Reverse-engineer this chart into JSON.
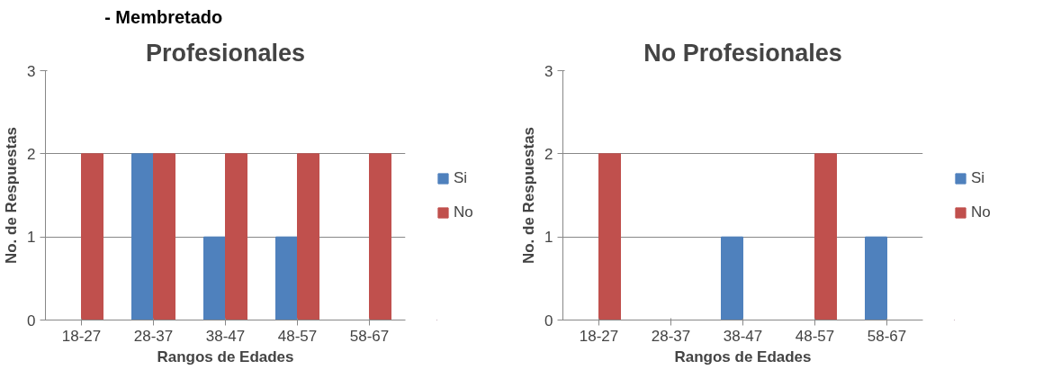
{
  "chart_data": [
    {
      "type": "bar",
      "title": "Profesionales",
      "xlabel": "Rangos de Edades",
      "ylabel": "No. de Respuestas",
      "annotations": [
        "- Membretado"
      ],
      "categories": [
        "18-27",
        "28-37",
        "38-47",
        "48-57",
        "58-67"
      ],
      "series": [
        {
          "name": "Si",
          "color": "#4f81bd",
          "values": [
            0,
            2,
            1,
            1,
            0
          ]
        },
        {
          "name": "No",
          "color": "#c0504d",
          "values": [
            2,
            2,
            2,
            2,
            2
          ]
        }
      ],
      "ylim": [
        0,
        3
      ],
      "yticks": [
        0,
        1,
        2,
        3
      ],
      "grid": "y",
      "legend": "right"
    },
    {
      "type": "bar",
      "title": "No Profesionales",
      "xlabel": "Rangos de Edades",
      "ylabel": "No. de Respuestas",
      "categories": [
        "18-27",
        "28-37",
        "38-47",
        "48-57",
        "58-67"
      ],
      "series": [
        {
          "name": "Si",
          "color": "#4f81bd",
          "values": [
            0,
            0,
            1,
            0,
            1
          ]
        },
        {
          "name": "No",
          "color": "#c0504d",
          "values": [
            2,
            0,
            0,
            2,
            0
          ]
        }
      ],
      "ylim": [
        0,
        3
      ],
      "yticks": [
        0,
        1,
        2,
        3
      ],
      "grid": "y",
      "legend": "right"
    }
  ]
}
